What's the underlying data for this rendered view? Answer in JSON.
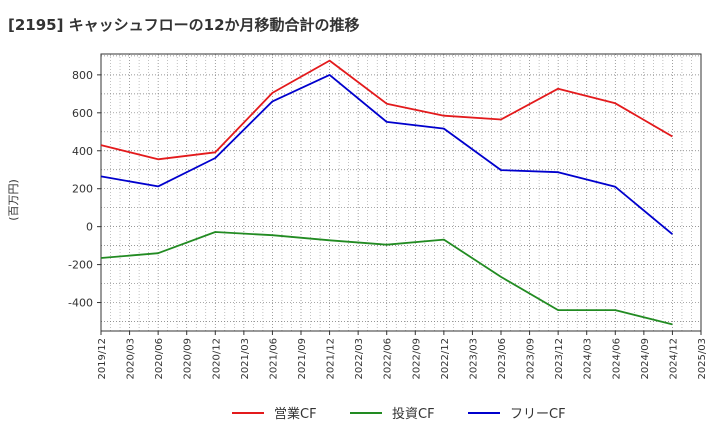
{
  "chart_data": {
    "type": "line",
    "title": "[2195]  キャッシュフローの12か月移動合計の推移",
    "ylabel": "(百万円)",
    "xlabel": "",
    "ylim": [
      -550,
      910
    ],
    "yticks": [
      -400,
      -200,
      0,
      200,
      400,
      600,
      800
    ],
    "x": [
      "2019/12",
      "2020/03",
      "2020/06",
      "2020/09",
      "2020/12",
      "2021/03",
      "2021/06",
      "2021/09",
      "2021/12",
      "2022/03",
      "2022/06",
      "2022/09",
      "2022/12",
      "2023/03",
      "2023/06",
      "2023/09",
      "2023/12",
      "2024/03",
      "2024/06",
      "2024/09",
      "2024/12",
      "2025/03"
    ],
    "grid": true,
    "legend_position": "bottom",
    "series": [
      {
        "name": "営業CF",
        "color": "#e31a1c",
        "points": [
          {
            "x": "2019/12",
            "y": 430
          },
          {
            "x": "2020/06",
            "y": 355
          },
          {
            "x": "2020/12",
            "y": 392
          },
          {
            "x": "2021/06",
            "y": 705
          },
          {
            "x": "2021/12",
            "y": 875
          },
          {
            "x": "2022/06",
            "y": 648
          },
          {
            "x": "2022/12",
            "y": 585
          },
          {
            "x": "2023/06",
            "y": 565
          },
          {
            "x": "2023/12",
            "y": 727
          },
          {
            "x": "2024/06",
            "y": 650
          },
          {
            "x": "2024/12",
            "y": 475
          }
        ]
      },
      {
        "name": "投資CF",
        "color": "#228b22",
        "points": [
          {
            "x": "2019/12",
            "y": -165
          },
          {
            "x": "2020/06",
            "y": -140
          },
          {
            "x": "2020/12",
            "y": -28
          },
          {
            "x": "2021/06",
            "y": -45
          },
          {
            "x": "2021/12",
            "y": -72
          },
          {
            "x": "2022/06",
            "y": -95
          },
          {
            "x": "2022/12",
            "y": -68
          },
          {
            "x": "2023/06",
            "y": -265
          },
          {
            "x": "2023/12",
            "y": -440
          },
          {
            "x": "2024/06",
            "y": -440
          },
          {
            "x": "2024/12",
            "y": -515
          }
        ]
      },
      {
        "name": "フリーCF",
        "color": "#0000cd",
        "points": [
          {
            "x": "2019/12",
            "y": 265
          },
          {
            "x": "2020/06",
            "y": 212
          },
          {
            "x": "2020/12",
            "y": 362
          },
          {
            "x": "2021/06",
            "y": 660
          },
          {
            "x": "2021/12",
            "y": 800
          },
          {
            "x": "2022/06",
            "y": 552
          },
          {
            "x": "2022/12",
            "y": 517
          },
          {
            "x": "2023/06",
            "y": 298
          },
          {
            "x": "2023/12",
            "y": 287
          },
          {
            "x": "2024/06",
            "y": 210
          },
          {
            "x": "2024/12",
            "y": -40
          }
        ]
      }
    ]
  }
}
